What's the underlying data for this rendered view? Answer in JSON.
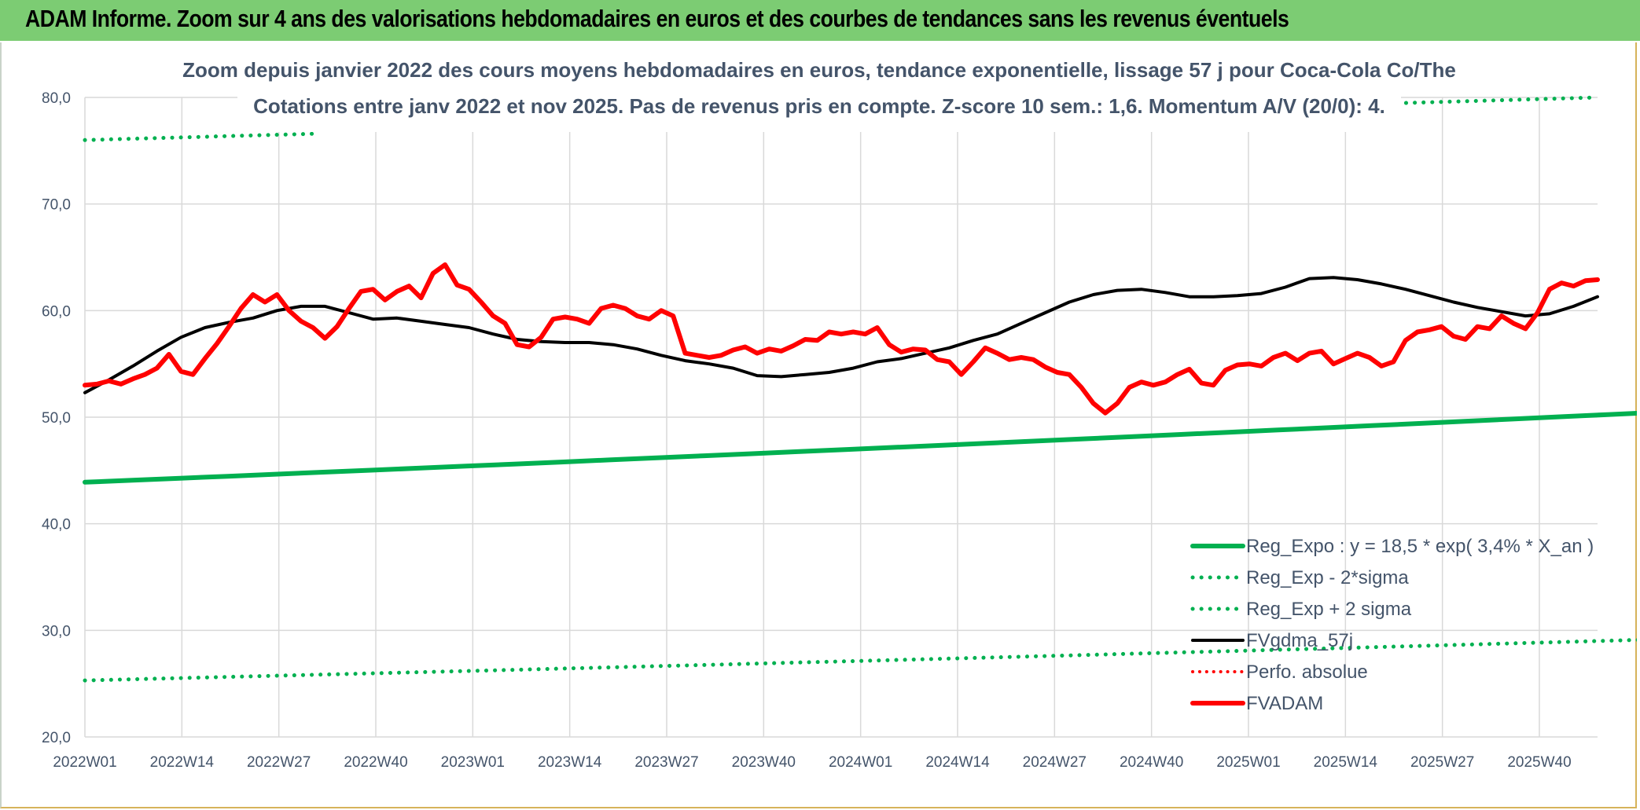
{
  "header": {
    "banner_title": "ADAM Informe. Zoom sur 4 ans des valorisations hebdomadaires en euros et des courbes de tendances sans les revenus éventuels"
  },
  "colors": {
    "banner_bg": "#7ccc73",
    "reg_line": "#00b050",
    "price_line": "#ff0000",
    "ma_line": "#000000",
    "perf_line": "#ff0000",
    "grid": "#d9d9d9",
    "axis_text": "#44546a"
  },
  "chart_data": {
    "type": "line",
    "title": "Zoom depuis janvier 2022 des cours moyens hebdomadaires en euros, tendance exponentielle, lissage 57 j pour Coca-Cola Co/The",
    "subtitle": "Cotations entre janv 2022 et nov 2025. Pas de revenus pris en compte. Z-score 10 sem.: 1,6. Momentum A/V (20/0): 4.",
    "x_tick_labels": [
      "2022W01",
      "2022W14",
      "2022W27",
      "2022W40",
      "2023W01",
      "2023W14",
      "2023W27",
      "2023W40",
      "2024W01",
      "2024W14",
      "2024W27",
      "2024W40",
      "2025W01",
      "2025W14",
      "2025W27",
      "2025W40"
    ],
    "weeks_per_tick": 13,
    "total_weeks": 201,
    "y_tick_labels": [
      "20,0",
      "30,0",
      "40,0",
      "50,0",
      "60,0",
      "70,0",
      "80,0"
    ],
    "ylim": [
      20,
      80
    ],
    "y_step": 10,
    "grid": true,
    "legend_position": "bottom-right",
    "series": [
      {
        "name": "Reg_Expo : y = 18,5 * exp( 3,4% *  X_an )",
        "style": "solid",
        "color": "#00b050",
        "width": 6,
        "start": 43.9,
        "end": 50.2
      },
      {
        "name": "Reg_Exp - 2*sigma",
        "style": "dotted",
        "color": "#00b050",
        "width": 5,
        "start": 25.3,
        "end": 29.0
      },
      {
        "name": "Reg_Exp + 2 sigma",
        "style": "dotted",
        "color": "#00b050",
        "width": 5,
        "start": 76.0,
        "end": 80.0,
        "segments": [
          [
            0,
            31
          ],
          [
            162,
            200
          ]
        ]
      },
      {
        "name": "FVgdma_57j",
        "style": "solid",
        "color": "#000000",
        "width": 4,
        "points": [
          [
            0,
            52.3
          ],
          [
            4,
            53.5
          ],
          [
            8,
            54.8
          ],
          [
            12,
            56.2
          ],
          [
            16,
            57.5
          ],
          [
            20,
            58.4
          ],
          [
            24,
            58.9
          ],
          [
            28,
            59.3
          ],
          [
            32,
            60.0
          ],
          [
            36,
            60.4
          ],
          [
            40,
            60.4
          ],
          [
            44,
            59.8
          ],
          [
            48,
            59.2
          ],
          [
            52,
            59.3
          ],
          [
            56,
            59.0
          ],
          [
            60,
            58.7
          ],
          [
            64,
            58.4
          ],
          [
            68,
            57.8
          ],
          [
            72,
            57.3
          ],
          [
            76,
            57.1
          ],
          [
            80,
            57.0
          ],
          [
            84,
            57.0
          ],
          [
            88,
            56.8
          ],
          [
            92,
            56.4
          ],
          [
            96,
            55.8
          ],
          [
            100,
            55.3
          ],
          [
            104,
            55.0
          ],
          [
            108,
            54.6
          ],
          [
            112,
            53.9
          ],
          [
            116,
            53.8
          ],
          [
            120,
            54.0
          ],
          [
            124,
            54.2
          ],
          [
            128,
            54.6
          ],
          [
            132,
            55.2
          ],
          [
            136,
            55.5
          ],
          [
            140,
            56.0
          ],
          [
            144,
            56.5
          ],
          [
            148,
            57.2
          ],
          [
            152,
            57.8
          ],
          [
            156,
            58.8
          ],
          [
            160,
            59.8
          ],
          [
            164,
            60.8
          ],
          [
            168,
            61.5
          ],
          [
            172,
            61.9
          ],
          [
            176,
            62.0
          ],
          [
            180,
            61.7
          ],
          [
            184,
            61.3
          ],
          [
            188,
            61.3
          ],
          [
            192,
            61.4
          ],
          [
            196,
            61.6
          ],
          [
            200,
            62.2
          ],
          [
            204,
            63.0
          ],
          [
            208,
            63.1
          ],
          [
            212,
            62.9
          ],
          [
            216,
            62.5
          ],
          [
            220,
            62.0
          ],
          [
            224,
            61.4
          ],
          [
            228,
            60.8
          ],
          [
            232,
            60.3
          ],
          [
            236,
            59.9
          ],
          [
            240,
            59.5
          ],
          [
            244,
            59.7
          ],
          [
            248,
            60.4
          ],
          [
            252,
            61.3
          ]
        ]
      },
      {
        "name": "Perfo. absolue",
        "style": "dotted",
        "color": "#ff0000",
        "width": 4,
        "points": []
      },
      {
        "name": "FVADAM",
        "style": "solid",
        "color": "#ff0000",
        "width": 6,
        "points": [
          [
            0,
            53.0
          ],
          [
            2,
            53.1
          ],
          [
            4,
            53.4
          ],
          [
            6,
            53.1
          ],
          [
            8,
            53.6
          ],
          [
            10,
            54.0
          ],
          [
            12,
            54.6
          ],
          [
            14,
            55.9
          ],
          [
            16,
            54.3
          ],
          [
            18,
            54.0
          ],
          [
            20,
            55.5
          ],
          [
            22,
            56.9
          ],
          [
            24,
            58.5
          ],
          [
            26,
            60.2
          ],
          [
            28,
            61.5
          ],
          [
            30,
            60.8
          ],
          [
            32,
            61.5
          ],
          [
            34,
            60.0
          ],
          [
            36,
            59.0
          ],
          [
            38,
            58.4
          ],
          [
            40,
            57.4
          ],
          [
            42,
            58.5
          ],
          [
            44,
            60.2
          ],
          [
            46,
            61.8
          ],
          [
            48,
            62.0
          ],
          [
            50,
            61.0
          ],
          [
            52,
            61.8
          ],
          [
            54,
            62.3
          ],
          [
            56,
            61.2
          ],
          [
            58,
            63.5
          ],
          [
            60,
            64.3
          ],
          [
            62,
            62.4
          ],
          [
            64,
            62.0
          ],
          [
            66,
            60.8
          ],
          [
            68,
            59.5
          ],
          [
            70,
            58.8
          ],
          [
            72,
            56.8
          ],
          [
            74,
            56.6
          ],
          [
            76,
            57.5
          ],
          [
            78,
            59.2
          ],
          [
            80,
            59.4
          ],
          [
            82,
            59.2
          ],
          [
            84,
            58.8
          ],
          [
            86,
            60.2
          ],
          [
            88,
            60.5
          ],
          [
            90,
            60.2
          ],
          [
            92,
            59.5
          ],
          [
            94,
            59.2
          ],
          [
            96,
            60.0
          ],
          [
            98,
            59.5
          ],
          [
            100,
            56.0
          ],
          [
            102,
            55.8
          ],
          [
            104,
            55.6
          ],
          [
            106,
            55.8
          ],
          [
            108,
            56.3
          ],
          [
            110,
            56.6
          ],
          [
            112,
            56.0
          ],
          [
            114,
            56.4
          ],
          [
            116,
            56.2
          ],
          [
            118,
            56.7
          ],
          [
            120,
            57.3
          ],
          [
            122,
            57.2
          ],
          [
            124,
            58.0
          ],
          [
            126,
            57.8
          ],
          [
            128,
            58.0
          ],
          [
            130,
            57.8
          ],
          [
            132,
            58.4
          ],
          [
            134,
            56.8
          ],
          [
            136,
            56.1
          ],
          [
            138,
            56.4
          ],
          [
            140,
            56.3
          ],
          [
            142,
            55.4
          ],
          [
            144,
            55.2
          ],
          [
            146,
            54.0
          ],
          [
            148,
            55.2
          ],
          [
            150,
            56.5
          ],
          [
            152,
            56.0
          ],
          [
            154,
            55.4
          ],
          [
            156,
            55.6
          ],
          [
            158,
            55.4
          ],
          [
            160,
            54.7
          ],
          [
            162,
            54.2
          ],
          [
            164,
            54.0
          ],
          [
            166,
            52.8
          ],
          [
            168,
            51.3
          ],
          [
            170,
            50.4
          ],
          [
            172,
            51.3
          ],
          [
            174,
            52.8
          ],
          [
            176,
            53.3
          ],
          [
            178,
            53.0
          ],
          [
            180,
            53.3
          ],
          [
            182,
            54.0
          ],
          [
            184,
            54.5
          ],
          [
            186,
            53.2
          ],
          [
            188,
            53.0
          ],
          [
            190,
            54.4
          ],
          [
            192,
            54.9
          ],
          [
            194,
            55.0
          ],
          [
            196,
            54.8
          ],
          [
            198,
            55.6
          ],
          [
            200,
            56.0
          ],
          [
            202,
            55.3
          ],
          [
            204,
            56.0
          ],
          [
            206,
            56.2
          ],
          [
            208,
            55.0
          ],
          [
            210,
            55.5
          ],
          [
            212,
            56.0
          ],
          [
            214,
            55.6
          ],
          [
            216,
            54.8
          ],
          [
            218,
            55.2
          ],
          [
            220,
            57.2
          ],
          [
            222,
            58.0
          ],
          [
            224,
            58.2
          ],
          [
            226,
            58.5
          ],
          [
            228,
            57.6
          ],
          [
            230,
            57.3
          ],
          [
            232,
            58.5
          ],
          [
            234,
            58.3
          ],
          [
            236,
            59.5
          ],
          [
            238,
            58.8
          ],
          [
            240,
            58.3
          ],
          [
            242,
            59.8
          ],
          [
            244,
            62.0
          ],
          [
            246,
            62.6
          ],
          [
            248,
            62.3
          ],
          [
            250,
            62.8
          ],
          [
            252,
            62.9
          ]
        ]
      }
    ]
  },
  "legend": {
    "items": [
      "Reg_Expo : y = 18,5 * exp( 3,4% *  X_an )",
      "Reg_Exp - 2*sigma",
      "Reg_Exp + 2 sigma",
      "FVgdma_57j",
      "Perfo. absolue",
      "FVADAM"
    ]
  }
}
